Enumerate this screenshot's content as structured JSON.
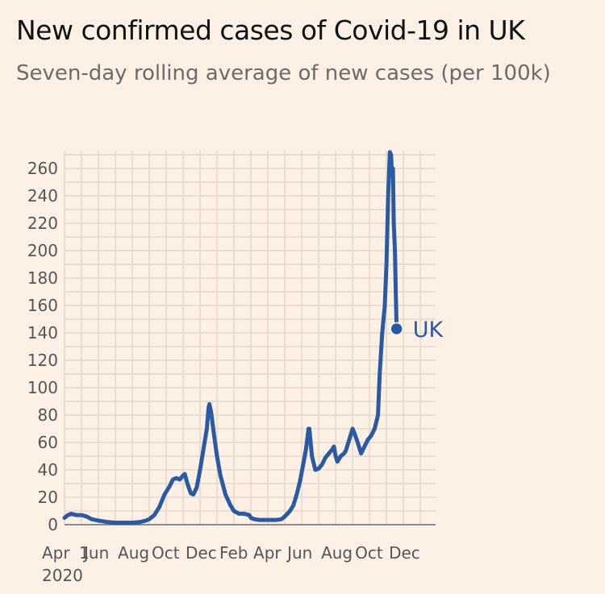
{
  "title": "New confirmed cases of Covid-19 in UK",
  "subtitle": "Seven-day rolling average of new cases (per 100k)",
  "colors": {
    "background": "#fdf1e5",
    "line": "#2a5aa3",
    "grid": "#e6d9cc",
    "axis": "#6b6b6b",
    "tick_text": "#555555",
    "label": "#2a5aa3"
  },
  "chart_data": {
    "type": "line",
    "title": "New confirmed cases of Covid-19 in UK",
    "subtitle": "Seven-day rolling average of new cases (per 100k)",
    "xlabel": "",
    "ylabel": "",
    "ylim": [
      0,
      273
    ],
    "xlim": [
      0,
      21.9
    ],
    "grid": true,
    "x_unit": "months since 1 Apr 2020",
    "y_ticks": [
      0,
      20,
      40,
      60,
      80,
      100,
      120,
      140,
      160,
      180,
      200,
      220,
      240,
      260
    ],
    "x_tick_labels": [
      {
        "label": "Apr",
        "x": 0
      },
      {
        "label": "Jun",
        "x": 2
      },
      {
        "label": "Aug",
        "x": 4
      },
      {
        "label": "Oct",
        "x": 6
      },
      {
        "label": "Dec",
        "x": 8
      },
      {
        "label": "Feb",
        "x": 10
      },
      {
        "label": "Apr",
        "x": 12
      },
      {
        "label": "Jun",
        "x": 14
      },
      {
        "label": "Aug",
        "x": 16
      },
      {
        "label": "Oct",
        "x": 18
      },
      {
        "label": "Dec",
        "x": 20
      }
    ],
    "x_year_label": "2020",
    "x_first_label_suffix": "1",
    "series": [
      {
        "name": "UK",
        "end_value": 143,
        "points": [
          [
            0.0,
            5
          ],
          [
            0.2,
            7
          ],
          [
            0.4,
            8
          ],
          [
            0.7,
            7
          ],
          [
            1.0,
            7
          ],
          [
            1.3,
            6
          ],
          [
            1.6,
            4
          ],
          [
            2.0,
            3
          ],
          [
            2.5,
            2
          ],
          [
            3.0,
            1.5
          ],
          [
            3.5,
            1.5
          ],
          [
            4.0,
            1.5
          ],
          [
            4.5,
            2
          ],
          [
            4.8,
            3
          ],
          [
            5.0,
            4
          ],
          [
            5.3,
            7
          ],
          [
            5.6,
            13
          ],
          [
            5.9,
            22
          ],
          [
            6.2,
            28
          ],
          [
            6.4,
            33
          ],
          [
            6.6,
            34
          ],
          [
            6.8,
            33
          ],
          [
            7.0,
            36
          ],
          [
            7.1,
            37
          ],
          [
            7.25,
            30
          ],
          [
            7.45,
            23
          ],
          [
            7.6,
            22
          ],
          [
            7.8,
            27
          ],
          [
            8.0,
            40
          ],
          [
            8.2,
            55
          ],
          [
            8.4,
            70
          ],
          [
            8.5,
            85
          ],
          [
            8.55,
            88
          ],
          [
            8.65,
            82
          ],
          [
            8.8,
            68
          ],
          [
            9.0,
            50
          ],
          [
            9.2,
            36
          ],
          [
            9.5,
            22
          ],
          [
            9.8,
            14
          ],
          [
            10.0,
            10
          ],
          [
            10.3,
            8
          ],
          [
            10.6,
            8
          ],
          [
            10.9,
            7
          ],
          [
            11.0,
            5
          ],
          [
            11.2,
            4
          ],
          [
            11.5,
            3.5
          ],
          [
            12.0,
            3.5
          ],
          [
            12.5,
            3.5
          ],
          [
            12.8,
            4
          ],
          [
            13.0,
            6
          ],
          [
            13.3,
            10
          ],
          [
            13.5,
            14
          ],
          [
            13.7,
            22
          ],
          [
            13.9,
            32
          ],
          [
            14.1,
            45
          ],
          [
            14.25,
            55
          ],
          [
            14.4,
            70
          ],
          [
            14.45,
            70
          ],
          [
            14.6,
            50
          ],
          [
            14.8,
            40
          ],
          [
            15.0,
            41
          ],
          [
            15.2,
            44
          ],
          [
            15.4,
            49
          ],
          [
            15.6,
            52
          ],
          [
            15.8,
            55
          ],
          [
            15.9,
            57
          ],
          [
            16.0,
            50
          ],
          [
            16.1,
            46
          ],
          [
            16.3,
            50
          ],
          [
            16.5,
            52
          ],
          [
            16.6,
            54
          ],
          [
            16.8,
            62
          ],
          [
            17.0,
            70
          ],
          [
            17.1,
            67
          ],
          [
            17.3,
            60
          ],
          [
            17.5,
            52
          ],
          [
            17.7,
            57
          ],
          [
            17.9,
            62
          ],
          [
            18.1,
            65
          ],
          [
            18.3,
            70
          ],
          [
            18.5,
            80
          ],
          [
            18.6,
            110
          ],
          [
            18.75,
            140
          ],
          [
            18.9,
            160
          ],
          [
            19.0,
            190
          ],
          [
            19.1,
            240
          ],
          [
            19.15,
            255
          ],
          [
            19.2,
            272
          ],
          [
            19.27,
            270
          ],
          [
            19.33,
            255
          ],
          [
            19.38,
            260
          ],
          [
            19.43,
            220
          ],
          [
            19.5,
            200
          ],
          [
            19.55,
            170
          ],
          [
            19.6,
            143
          ]
        ]
      }
    ]
  }
}
